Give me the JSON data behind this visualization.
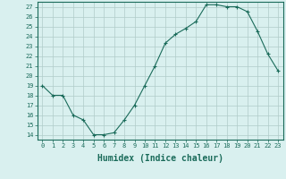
{
  "xlabel": "Humidex (Indice chaleur)",
  "ylabel": "",
  "x": [
    0,
    1,
    2,
    3,
    4,
    5,
    6,
    7,
    8,
    9,
    10,
    11,
    12,
    13,
    14,
    15,
    16,
    17,
    18,
    19,
    20,
    21,
    22,
    23
  ],
  "y": [
    19,
    18,
    18,
    16,
    15.5,
    14,
    14,
    14.2,
    15.5,
    17,
    19,
    21,
    23.3,
    24.2,
    24.8,
    25.5,
    27.2,
    27.2,
    27,
    27,
    26.5,
    24.5,
    22.2,
    20.5
  ],
  "line_color": "#1a6b5a",
  "bg_color": "#d9f0ef",
  "grid_color": "#b0ccc9",
  "ylim": [
    13.5,
    27.5
  ],
  "xlim": [
    -0.5,
    23.5
  ],
  "yticks": [
    14,
    15,
    16,
    17,
    18,
    19,
    20,
    21,
    22,
    23,
    24,
    25,
    26,
    27
  ],
  "xticks": [
    0,
    1,
    2,
    3,
    4,
    5,
    6,
    7,
    8,
    9,
    10,
    11,
    12,
    13,
    14,
    15,
    16,
    17,
    18,
    19,
    20,
    21,
    22,
    23
  ],
  "tick_fontsize": 5,
  "xlabel_fontsize": 7,
  "marker": "+"
}
